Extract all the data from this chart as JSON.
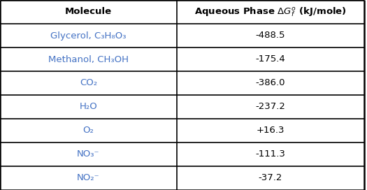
{
  "header": [
    "Molecule",
    "Aqueous Phase ΔGᵣº (kJ/mole)"
  ],
  "header_col1": "Molecule",
  "header_col2": "Aqueous Phase ΔG$_f$º (kJ/mole)",
  "rows_col1": [
    "Glycerol, C₃H₈O₃",
    "Methanol, CH₃OH",
    "CO₂",
    "H₂O",
    "O₂",
    "NO₃⁻",
    "NO₂⁻"
  ],
  "rows_col2": [
    "-488.5",
    "-175.4",
    "-386.0",
    "-237.2",
    "+16.3",
    "-111.3",
    "-37.2"
  ],
  "col_split": 0.485,
  "border_color": "#000000",
  "text_color_mol": "#4472c4",
  "text_color_val": "#000000",
  "header_text_color": "#000000",
  "bg_color": "#ffffff",
  "outer_border_lw": 1.8,
  "inner_border_lw": 1.2,
  "header_fontsize": 9.5,
  "cell_fontsize": 9.5,
  "fig_width": 5.25,
  "fig_height": 2.72
}
